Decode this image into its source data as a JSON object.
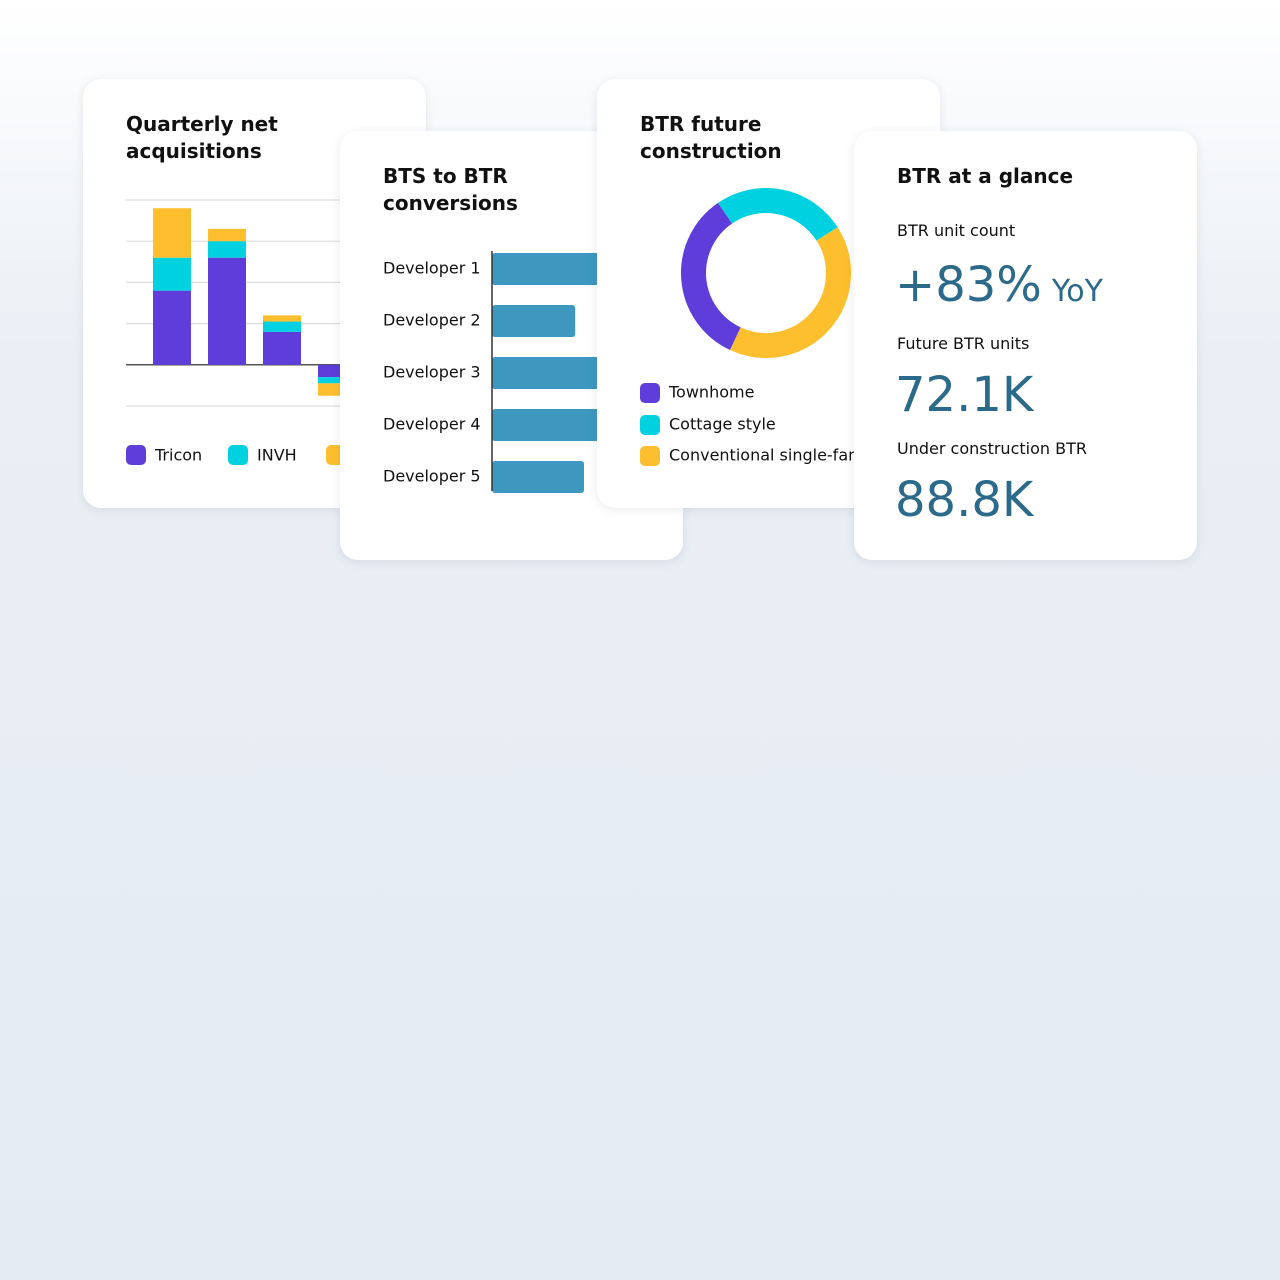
{
  "chart_data": [
    {
      "type": "stacked-bar",
      "title": "Quarterly net acquisitions",
      "categories": [
        null,
        null,
        null,
        null
      ],
      "series": [
        {
          "name": "Tricon",
          "color": "#5e3ddb",
          "values": [
            1.8,
            2.6,
            0.8,
            -0.3
          ]
        },
        {
          "name": "INVH",
          "color": "#00d1e0",
          "values": [
            0.8,
            0.4,
            0.25,
            -0.15
          ]
        },
        {
          "color": "#fdbf2d",
          "values": [
            1.2,
            0.3,
            0.15,
            -0.3
          ]
        }
      ],
      "ylim": [
        -1,
        4
      ],
      "yticks": [
        -1,
        0,
        1,
        2,
        3,
        4
      ],
      "grid": true
    },
    {
      "type": "hbar",
      "title": "BTS to BTR conversions",
      "categories": [
        "Developer 1",
        "Developer 2",
        "Developer 3",
        "Developer 4",
        "Developer 5"
      ],
      "values": [
        75,
        52,
        80,
        70,
        57.5
      ],
      "color": "#3d97bf",
      "xlim": [
        0,
        100
      ]
    },
    {
      "type": "donut",
      "title": "BTR future construction",
      "categories": [
        "Townhome",
        "Cottage style",
        "Conventional single-family"
      ],
      "values": [
        33.5,
        25.5,
        41
      ],
      "colors": [
        "#5e3ddb",
        "#00d1e0",
        "#fdbf2d"
      ]
    }
  ],
  "glance": {
    "title": "BTR at a glance",
    "metrics": [
      {
        "label": "BTR unit count",
        "value": "+83%",
        "unit": "YoY"
      },
      {
        "label": "Future BTR units",
        "value": "72.1K"
      },
      {
        "label": "Under construction BTR",
        "value": "88.8K"
      }
    ]
  }
}
